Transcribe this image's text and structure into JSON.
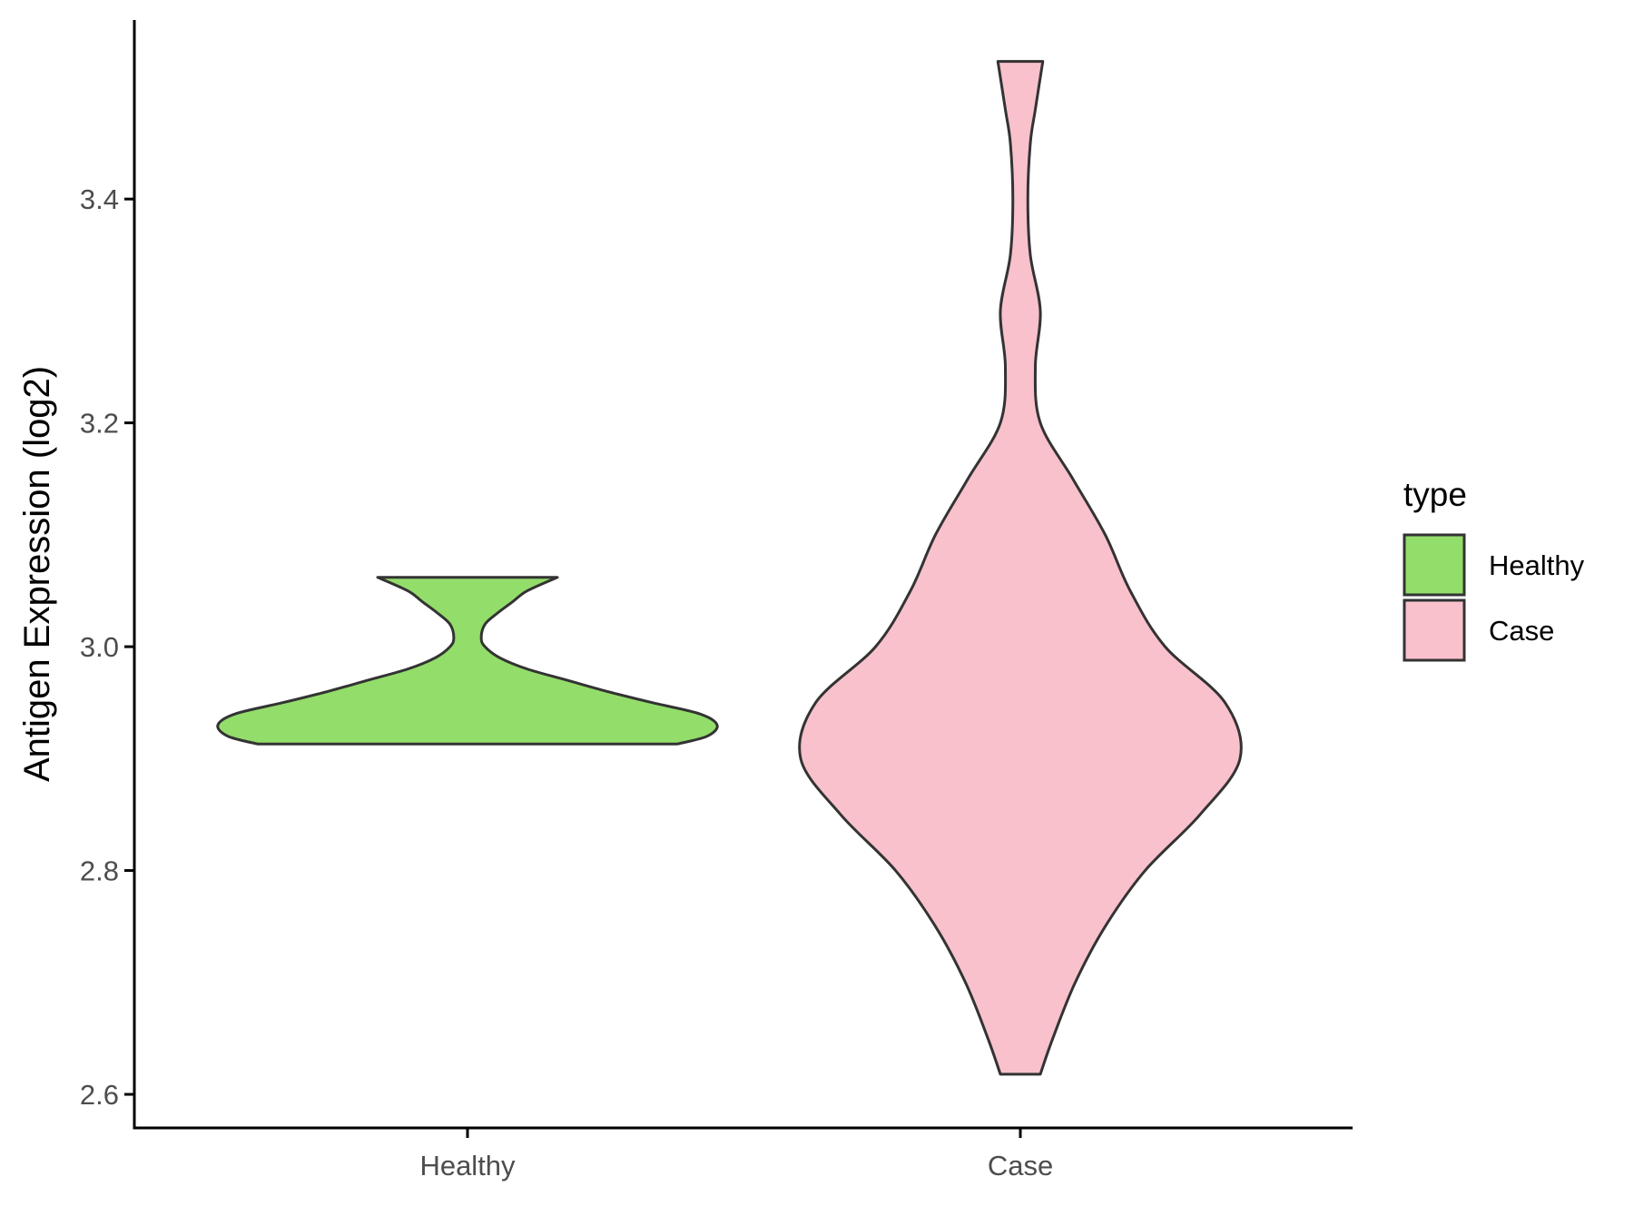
{
  "chart_data": {
    "type": "violin",
    "title": "",
    "xlabel": "",
    "ylabel": "Antigen Expression (log2)",
    "categories": [
      "Healthy",
      "Case"
    ],
    "ylim": [
      2.57,
      3.56
    ],
    "yticks": [
      2.6,
      2.8,
      3.0,
      3.2,
      3.4
    ],
    "ytick_labels": [
      "2.6",
      "2.8",
      "3.0",
      "3.2",
      "3.4"
    ],
    "grid": false,
    "legend": {
      "title": "type",
      "position": "right",
      "entries": [
        {
          "label": "Healthy",
          "color": "#93dd6a"
        },
        {
          "label": "Case",
          "color": "#f8c1cc"
        }
      ]
    },
    "series": [
      {
        "category": "Healthy",
        "color": "#93dd6a",
        "y_min": 2.913,
        "y_max": 3.062,
        "density_profile": [
          [
            2.913,
            0.84
          ],
          [
            2.92,
            0.96
          ],
          [
            2.93,
            1.0
          ],
          [
            2.94,
            0.93
          ],
          [
            2.95,
            0.74
          ],
          [
            2.96,
            0.56
          ],
          [
            2.97,
            0.4
          ],
          [
            2.98,
            0.24
          ],
          [
            2.99,
            0.13
          ],
          [
            3.0,
            0.07
          ],
          [
            3.008,
            0.055
          ],
          [
            3.02,
            0.07
          ],
          [
            3.03,
            0.12
          ],
          [
            3.04,
            0.18
          ],
          [
            3.05,
            0.24
          ],
          [
            3.062,
            0.36
          ]
        ]
      },
      {
        "category": "Case",
        "color": "#f8c1cc",
        "y_min": 2.618,
        "y_max": 3.523,
        "density_profile": [
          [
            2.618,
            0.08
          ],
          [
            2.65,
            0.13
          ],
          [
            2.7,
            0.22
          ],
          [
            2.75,
            0.34
          ],
          [
            2.8,
            0.5
          ],
          [
            2.85,
            0.72
          ],
          [
            2.9,
            0.88
          ],
          [
            2.95,
            0.82
          ],
          [
            3.0,
            0.58
          ],
          [
            3.05,
            0.44
          ],
          [
            3.1,
            0.34
          ],
          [
            3.15,
            0.21
          ],
          [
            3.2,
            0.08
          ],
          [
            3.25,
            0.06
          ],
          [
            3.3,
            0.08
          ],
          [
            3.35,
            0.04
          ],
          [
            3.4,
            0.03
          ],
          [
            3.45,
            0.04
          ],
          [
            3.48,
            0.06
          ],
          [
            3.523,
            0.09
          ]
        ]
      }
    ]
  }
}
